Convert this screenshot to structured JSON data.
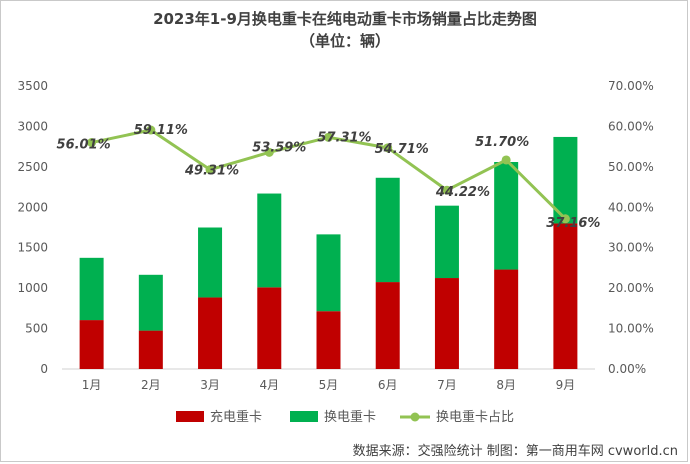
{
  "chart_data": {
    "type": "bar",
    "stacked": true,
    "title": "2023年1-9月换电重卡在纯电动重卡市场销量占比走势图",
    "subtitle": "（单位：辆）",
    "categories": [
      "1月",
      "2月",
      "3月",
      "4月",
      "5月",
      "6月",
      "7月",
      "8月",
      "9月"
    ],
    "series": [
      {
        "name": "充电重卡",
        "type": "bar",
        "color": "#c00000",
        "values": [
          605,
          475,
          885,
          1010,
          715,
          1075,
          1125,
          1230,
          1800
        ]
      },
      {
        "name": "换电重卡",
        "type": "bar",
        "color": "#00b050",
        "values": [
          770,
          690,
          865,
          1160,
          950,
          1290,
          895,
          1330,
          1070
        ]
      },
      {
        "name": "换电重卡占比",
        "type": "line",
        "axis": "right",
        "color": "#92c353",
        "values": [
          56.01,
          59.11,
          49.31,
          53.59,
          57.31,
          54.71,
          44.22,
          51.7,
          37.16
        ],
        "labels": [
          "56.01%",
          "59.11%",
          "49.31%",
          "53.59%",
          "57.31%",
          "54.71%",
          "44.22%",
          "51.70%",
          "37.16%"
        ]
      }
    ],
    "y_left": {
      "min": 0,
      "max": 3500,
      "step": 500,
      "ticks": [
        "0",
        "500",
        "1000",
        "1500",
        "2000",
        "2500",
        "3000",
        "3500"
      ]
    },
    "y_right": {
      "min": 0,
      "max": 70,
      "step": 10,
      "ticks": [
        "0.00%",
        "10.00%",
        "20.00%",
        "30.00%",
        "40.00%",
        "50.00%",
        "60.00%",
        "70.00%"
      ]
    },
    "legend_position": "bottom",
    "grid": false
  },
  "source": "数据来源：交强险统计 制图：第一商用车网 cvworld.cn"
}
